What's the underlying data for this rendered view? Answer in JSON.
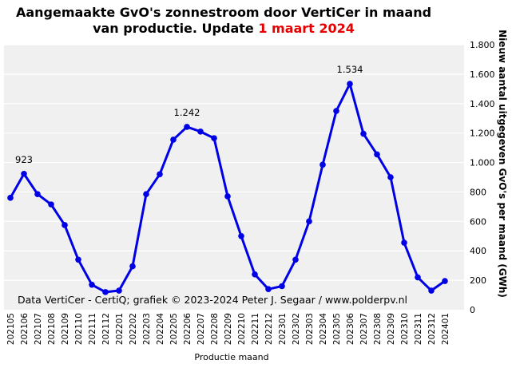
{
  "title": {
    "line1": "Aangemaakte GvO's zonnestroom door VertiCer in maand",
    "line2_prefix": "van productie. Update ",
    "line2_highlight": "1 maart 2024"
  },
  "colors": {
    "line": "#0000e6",
    "plot_background": "#f0f0f0",
    "grid": "#ffffff",
    "title_highlight": "#e60000"
  },
  "credit": "Data VertiCer - CertiQ; grafiek © 2023-2024 Peter J. Segaar / www.polderpv.nl",
  "chart_data": {
    "type": "line",
    "title": "Aangemaakte GvO's zonnestroom door VertiCer in maand van productie. Update 1 maart 2024",
    "xlabel": "Productie maand",
    "ylabel": "Nieuw aantal uitgegeven GvO's per maand (GWh)",
    "y_axis_position": "right",
    "ylim": [
      0,
      1800
    ],
    "yticks": [
      0,
      200,
      400,
      600,
      800,
      1000,
      1200,
      1400,
      1600,
      1800
    ],
    "ytick_labels": [
      "0",
      "200",
      "400",
      "600",
      "800",
      "1.000",
      "1.200",
      "1.400",
      "1.600",
      "1.800"
    ],
    "grid": true,
    "categories": [
      "202105",
      "202106",
      "202107",
      "202108",
      "202109",
      "202110",
      "202111",
      "202112",
      "202201",
      "202202",
      "202203",
      "202204",
      "202205",
      "202206",
      "202207",
      "202208",
      "202209",
      "202210",
      "202211",
      "202212",
      "202301",
      "202302",
      "202303",
      "202304",
      "202305",
      "202306",
      "202307",
      "202308",
      "202309",
      "202310",
      "202311",
      "202312",
      "202401"
    ],
    "values": [
      760,
      923,
      785,
      715,
      575,
      340,
      170,
      120,
      130,
      295,
      785,
      920,
      1155,
      1242,
      1210,
      1165,
      770,
      500,
      240,
      140,
      160,
      340,
      600,
      985,
      1350,
      1534,
      1195,
      1055,
      900,
      455,
      220,
      130,
      195
    ],
    "annotations": [
      {
        "category": "202106",
        "value": 923,
        "label": "923"
      },
      {
        "category": "202206",
        "value": 1242,
        "label": "1.242"
      },
      {
        "category": "202306",
        "value": 1534,
        "label": "1.534"
      }
    ]
  }
}
